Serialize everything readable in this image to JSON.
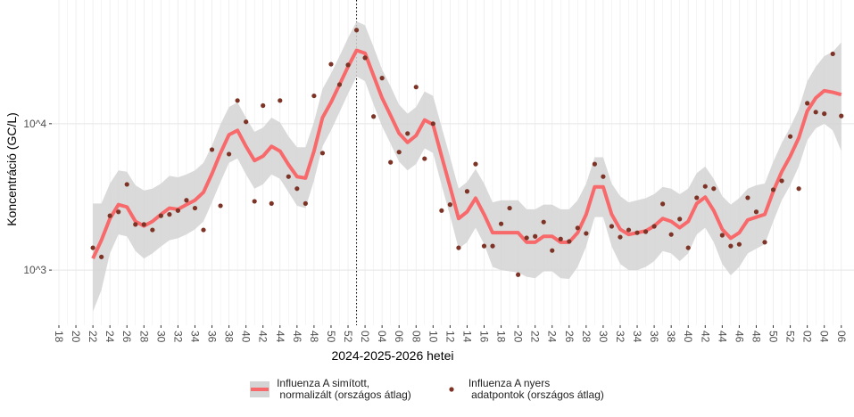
{
  "chart_data": {
    "type": "line",
    "x_label": "2024-2025-2026 hetei",
    "y_label": "Koncentráció (GC/L)",
    "log_scale": true,
    "grid": true,
    "legend": "bottom",
    "ylim": [
      420,
      70000
    ],
    "yticks": [
      {
        "value": 1000,
        "label": "10^3"
      },
      {
        "value": 10000,
        "label": "10^4"
      }
    ],
    "categories": [
      "18",
      null,
      "20",
      null,
      "22",
      null,
      "24",
      null,
      "26",
      null,
      "28",
      null,
      "30",
      null,
      "32",
      null,
      "34",
      null,
      "36",
      null,
      "38",
      null,
      "40",
      null,
      "42",
      null,
      "44",
      null,
      "46",
      null,
      "48",
      null,
      "50",
      null,
      "52",
      null,
      "02",
      null,
      "04",
      null,
      "06",
      null,
      "08",
      null,
      "10",
      null,
      "12",
      null,
      "14",
      null,
      "16",
      null,
      "18",
      null,
      "20",
      null,
      "22",
      null,
      "24",
      null,
      "26",
      null,
      "28",
      null,
      "30",
      null,
      "32",
      null,
      "34",
      null,
      "36",
      null,
      "38",
      null,
      "40",
      null,
      "42",
      null,
      "44",
      null,
      "46",
      null,
      "48",
      null,
      "50",
      null,
      "52",
      null,
      "02",
      null,
      "04",
      null,
      "06"
    ],
    "series": [
      {
        "name": "Influenza A simított,\n normalizált (országos átlag)",
        "color": "#f8696b",
        "band_color": "#d4d4d4",
        "values": [
          null,
          null,
          null,
          null,
          1200,
          1600,
          2250,
          2800,
          2700,
          2150,
          2000,
          2150,
          2400,
          2650,
          2600,
          2800,
          3000,
          3400,
          4550,
          6300,
          8400,
          9000,
          7000,
          5600,
          6000,
          7000,
          6500,
          5250,
          4350,
          4250,
          6500,
          11000,
          14000,
          18500,
          24500,
          31700,
          30300,
          21300,
          15000,
          11400,
          8600,
          7450,
          8300,
          10600,
          9850,
          6000,
          3700,
          2250,
          2500,
          3100,
          2400,
          1800,
          1800,
          1800,
          1800,
          1550,
          1550,
          1700,
          1700,
          1550,
          1550,
          1800,
          2400,
          3700,
          3700,
          2400,
          1900,
          1750,
          1800,
          1850,
          2000,
          2250,
          2150,
          1950,
          2150,
          2850,
          3150,
          2550,
          1900,
          1650,
          1800,
          2200,
          2300,
          2400,
          3450,
          4700,
          6000,
          8000,
          12200,
          15000,
          16800,
          16400,
          15800
        ],
        "lower": [
          null,
          null,
          null,
          null,
          520,
          730,
          1300,
          1750,
          1700,
          1350,
          1200,
          1300,
          1450,
          1600,
          1650,
          1750,
          1900,
          2150,
          2900,
          4000,
          5400,
          5800,
          4500,
          3600,
          3850,
          4500,
          4200,
          3400,
          2750,
          2650,
          4100,
          7000,
          9000,
          12000,
          16000,
          21000,
          19500,
          13500,
          9600,
          7300,
          5500,
          4800,
          5300,
          6800,
          6300,
          3800,
          2350,
          1400,
          1550,
          1950,
          1500,
          1050,
          1000,
          980,
          960,
          900,
          880,
          980,
          980,
          880,
          870,
          1050,
          1450,
          2300,
          2300,
          1450,
          1100,
          1000,
          1000,
          1050,
          1150,
          1350,
          1300,
          1150,
          1300,
          1750,
          1950,
          1550,
          1100,
          920,
          1050,
          1300,
          1400,
          1500,
          2150,
          3000,
          3800,
          5100,
          7700,
          9300,
          10000,
          9000,
          6500
        ],
        "upper": [
          null,
          null,
          null,
          null,
          2850,
          2850,
          3900,
          4800,
          4700,
          3800,
          3500,
          3600,
          3900,
          4400,
          4300,
          4500,
          4800,
          5400,
          7100,
          9900,
          13000,
          14000,
          11000,
          8800,
          9400,
          11000,
          10200,
          8200,
          6900,
          6900,
          10300,
          17300,
          22000,
          29000,
          38500,
          50000,
          47000,
          33500,
          23500,
          18000,
          13500,
          11700,
          13000,
          16600,
          15500,
          9500,
          5900,
          3600,
          4000,
          4900,
          3900,
          2900,
          3000,
          3000,
          3000,
          2600,
          2600,
          2800,
          2800,
          2600,
          2600,
          3000,
          3900,
          5900,
          5900,
          3900,
          3200,
          2900,
          3000,
          3100,
          3300,
          3700,
          3600,
          3300,
          3600,
          4600,
          5100,
          4200,
          3200,
          2800,
          3100,
          3600,
          3800,
          3900,
          5500,
          7400,
          9500,
          12600,
          19500,
          24500,
          29000,
          31000,
          36000
        ]
      },
      {
        "name": "Influenza A nyers\n adatpontok (országos átlag)",
        "type": "scatter",
        "color": "#7d3325",
        "values": [
          null,
          null,
          null,
          null,
          1420,
          1230,
          2350,
          2500,
          3850,
          2050,
          2050,
          1880,
          2350,
          2400,
          2550,
          3000,
          2650,
          1880,
          6650,
          2750,
          6200,
          14400,
          10300,
          2950,
          13300,
          2850,
          14400,
          4350,
          3600,
          2850,
          15500,
          6300,
          25500,
          18500,
          25200,
          43600,
          28200,
          11200,
          20500,
          5450,
          6400,
          8570,
          17800,
          5770,
          10000,
          2550,
          2800,
          1420,
          3450,
          5300,
          1460,
          1460,
          2070,
          2650,
          930,
          1660,
          1700,
          2130,
          1360,
          1630,
          1570,
          1940,
          1780,
          5300,
          4350,
          1990,
          1680,
          1880,
          1800,
          1830,
          1990,
          2830,
          1750,
          2230,
          1420,
          3120,
          3730,
          3600,
          1730,
          1460,
          1500,
          3120,
          2500,
          1550,
          3540,
          4070,
          8180,
          3600,
          13800,
          12000,
          11700,
          30000,
          11300
        ]
      }
    ]
  }
}
